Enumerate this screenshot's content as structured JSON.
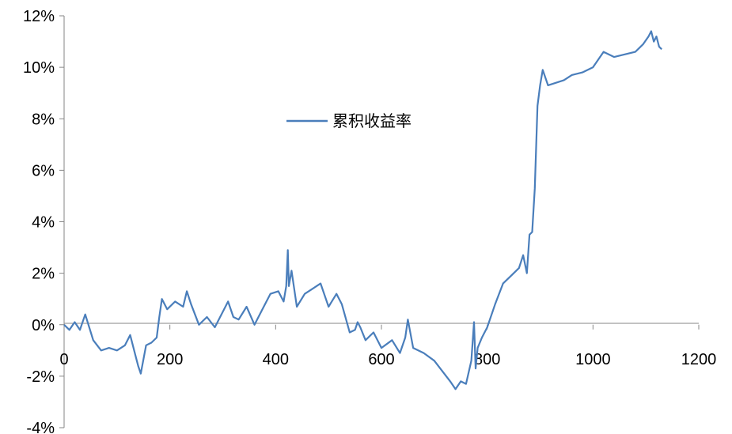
{
  "chart_data": {
    "type": "line",
    "title": "",
    "xlabel": "",
    "ylabel": "",
    "xlim": [
      0,
      1200
    ],
    "ylim": [
      -4,
      12
    ],
    "x_ticks": [
      0,
      200,
      400,
      600,
      800,
      1000,
      1200
    ],
    "x_tick_labels": [
      "0",
      "200",
      "400",
      "600",
      "800",
      "1000",
      "1200"
    ],
    "y_ticks": [
      12,
      10,
      8,
      6,
      4,
      2,
      0,
      -2,
      -4
    ],
    "y_tick_labels": [
      "12%",
      "10%",
      "8%",
      "6%",
      "4%",
      "2%",
      "0%",
      "-2%",
      "-4%"
    ],
    "grid": false,
    "legend_position": "upper-center",
    "series": [
      {
        "name": "累积收益率",
        "color": "#4a7ebb",
        "x": [
          0,
          10,
          20,
          30,
          40,
          55,
          70,
          85,
          100,
          115,
          125,
          135,
          140,
          145,
          155,
          165,
          175,
          180,
          185,
          195,
          210,
          225,
          232,
          240,
          255,
          270,
          285,
          300,
          310,
          320,
          330,
          345,
          360,
          375,
          390,
          405,
          415,
          420,
          423,
          425,
          430,
          440,
          455,
          470,
          485,
          500,
          515,
          525,
          540,
          550,
          555,
          560,
          570,
          585,
          600,
          620,
          635,
          645,
          650,
          660,
          680,
          700,
          715,
          730,
          740,
          750,
          760,
          770,
          775,
          778,
          782,
          790,
          800,
          815,
          830,
          845,
          860,
          868,
          875,
          880,
          885,
          890,
          895,
          900,
          905,
          915,
          930,
          945,
          960,
          980,
          1000,
          1020,
          1040,
          1060,
          1080,
          1095,
          1105,
          1110,
          1115,
          1120,
          1125,
          1130
        ],
        "values": [
          0,
          -0.2,
          0.1,
          -0.2,
          0.4,
          -0.6,
          -1.0,
          -0.9,
          -1.0,
          -0.8,
          -0.4,
          -1.2,
          -1.6,
          -1.9,
          -0.8,
          -0.7,
          -0.5,
          0.3,
          1.0,
          0.6,
          0.9,
          0.7,
          1.3,
          0.8,
          0.0,
          0.3,
          -0.1,
          0.5,
          0.9,
          0.3,
          0.2,
          0.7,
          0.0,
          0.6,
          1.2,
          1.3,
          0.9,
          1.5,
          2.9,
          1.5,
          2.1,
          0.7,
          1.2,
          1.4,
          1.6,
          0.7,
          1.2,
          0.8,
          -0.3,
          -0.2,
          0.1,
          -0.1,
          -0.6,
          -0.3,
          -0.9,
          -0.6,
          -1.1,
          -0.5,
          0.2,
          -0.9,
          -1.1,
          -1.4,
          -1.8,
          -2.2,
          -2.5,
          -2.2,
          -2.3,
          -1.4,
          0.1,
          -1.7,
          -0.9,
          -0.5,
          -0.1,
          0.8,
          1.6,
          1.9,
          2.2,
          2.7,
          2.0,
          3.5,
          3.6,
          5.3,
          8.5,
          9.3,
          9.9,
          9.3,
          9.4,
          9.5,
          9.7,
          9.8,
          10.0,
          10.6,
          10.4,
          10.5,
          10.6,
          10.9,
          11.2,
          11.4,
          11.0,
          11.2,
          10.8,
          10.7
        ]
      }
    ]
  }
}
